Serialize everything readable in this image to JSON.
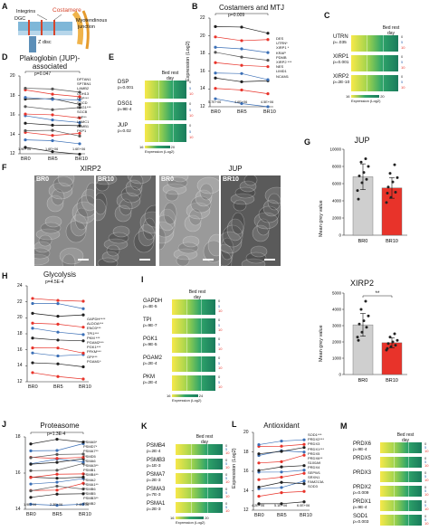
{
  "panels": {
    "A": {
      "letter": "A",
      "labels": [
        "Integrins",
        "DGC",
        "Costamere",
        "Myotendinous",
        "junction",
        "Z disc"
      ],
      "vertical_text": "Tendon"
    },
    "B": {
      "letter": "B",
      "title": "Costamers and MTJ",
      "pvalue": "p=0.009",
      "ylabel": "Expression (Log2)",
      "yticks": [
        "22",
        "20",
        "18",
        "16",
        "14",
        "12"
      ],
      "xticks": [
        "BR0",
        "BR5",
        "BR10"
      ],
      "genes": [
        "DES",
        "UTRN*",
        "XIRP1 *",
        "KRAP",
        "PDMB",
        "XIRP2 ***",
        "NES",
        "LIMD1",
        "NCAM1"
      ],
      "bottom_counts": [
        "5.7E+06",
        "4.6E+06",
        "4.5E+06"
      ]
    },
    "C": {
      "letter": "C",
      "bed_rest_label": "Bed rest day",
      "rows": [
        {
          "gene": "UTRN",
          "p": "p=.035",
          "days": [
            "0",
            "5",
            "10"
          ]
        },
        {
          "gene": "XIRP1",
          "p": "p=0.001",
          "days": [
            "0",
            "5",
            "10"
          ]
        },
        {
          "gene": "XIRP2",
          "p": "p=2E-10",
          "days": [
            "0",
            "5",
            "10"
          ]
        }
      ],
      "scale_min": "16",
      "scale_max": "20",
      "scale_label": "Expression (Log2)"
    },
    "D": {
      "letter": "D",
      "title_line1": "Plakoglobin (JUP)-",
      "title_line2": "associated",
      "pvalue": "p=0.047",
      "yticks": [
        "20",
        "18",
        "16",
        "14",
        "12"
      ],
      "xticks": [
        "BR0",
        "BR5",
        "BR10"
      ],
      "genes": [
        "DPTAN1",
        "SPTBN1",
        "LAMB2",
        "CDH13",
        "DSP***",
        "SGCD",
        "DSG1***",
        "SGCB",
        "JUP**",
        "LAMC1",
        "LAMB1",
        "PKP1"
      ],
      "bottom_counts": [
        "1.9E+06",
        "1.6E+06",
        "1.6E+06"
      ]
    },
    "E": {
      "letter": "E",
      "bed_rest_label": "Bed rest day",
      "rows": [
        {
          "gene": "DSP",
          "p": "p=0.001",
          "days": [
            "0",
            "5",
            "10"
          ]
        },
        {
          "gene": "DSG1",
          "p": "p=9E-4",
          "days": [
            "0",
            "5",
            "10"
          ]
        },
        {
          "gene": "JUP",
          "p": "p=0.02",
          "days": [
            "0",
            "5",
            "10"
          ]
        }
      ],
      "scale_min": "16",
      "scale_max": "20",
      "scale_label": "Expression (Log2)"
    },
    "F": {
      "letter": "F",
      "group1_title": "XIRP2",
      "group2_title": "JUP",
      "images": [
        "BR0",
        "BR10",
        "BR0",
        "BR10"
      ]
    },
    "G": {
      "letter": "G",
      "chart1_title": "JUP",
      "chart2_title": "XIRP2",
      "ylabel": "Mean grey value",
      "chart1_yticks": [
        "10000",
        "8000",
        "6000",
        "4000",
        "2000",
        "0"
      ],
      "chart2_yticks": [
        "5000",
        "4000",
        "3000",
        "2000",
        "1000",
        "0"
      ],
      "sig": "**"
    },
    "H": {
      "letter": "H",
      "title": "Glycolysis",
      "pvalue": "p=4.5E-4",
      "yticks": [
        "24",
        "22",
        "20",
        "18",
        "16",
        "14",
        "12"
      ],
      "xticks": [
        "BR0",
        "BR5",
        "BR10"
      ],
      "genes": [
        "GAPDH****",
        "ALDOA***",
        "ENO3***",
        "TPI1***",
        "PKM ***",
        "PGAM2***",
        "PGK1***",
        "PFKM***",
        "GPI***",
        "PGAM1*"
      ]
    },
    "I": {
      "letter": "I",
      "bed_rest_label": "Bed rest day",
      "rows": [
        {
          "gene": "GAPDH",
          "p": "p=4E-5",
          "days": [
            "0",
            "5",
            "10"
          ]
        },
        {
          "gene": "TPI",
          "p": "p=9E-7",
          "days": [
            "0",
            "5",
            "10"
          ]
        },
        {
          "gene": "PGK1",
          "p": "p=9E-5",
          "days": [
            "0",
            "5",
            "10"
          ]
        },
        {
          "gene": "PGAM2",
          "p": "p=2E-4",
          "days": [
            "0",
            "5",
            "10"
          ]
        },
        {
          "gene": "PKM",
          "p": "p=2E-4",
          "days": [
            "0",
            "5",
            "10"
          ]
        }
      ],
      "scale_min": "16",
      "scale_max": "24",
      "scale_label": "Expression (Log2)"
    },
    "J": {
      "letter": "J",
      "title": "Proteasome",
      "pvalue": "p=1.3E-4",
      "yticks": [
        "18",
        "16",
        "14"
      ],
      "xticks": [
        "BR0",
        "BR5",
        "BR10"
      ],
      "genes": [
        "PSMA5*",
        "PSMD7*",
        "PSMA7**",
        "PSMD5",
        "PSMA6",
        "PSMA3**",
        "PSMB1",
        "PSMB4**",
        "PSMA2",
        "PSMA1**",
        "PSMB6",
        "PSMB5",
        "PSMB3**",
        "PSMB2"
      ],
      "bottom_counts": [
        "1.9E+06",
        "2.3E+06",
        "2.4E+06"
      ]
    },
    "K": {
      "letter": "K",
      "bed_rest_label": "Bed rest day",
      "rows": [
        {
          "gene": "PSMB4",
          "p": "p=2E-4",
          "days": [
            "0",
            "5",
            "10"
          ]
        },
        {
          "gene": "PSMB3",
          "p": "p=1E-3",
          "days": [
            "0",
            "5",
            "10"
          ]
        },
        {
          "gene": "PSMA7",
          "p": "p=2E-3",
          "days": [
            "0",
            "5",
            "10"
          ]
        },
        {
          "gene": "PSMA3",
          "p": "p=7E-3",
          "days": [
            "0",
            "5",
            "10"
          ]
        },
        {
          "gene": "PSMA1",
          "p": "p=2E-3",
          "days": [
            "0",
            "5",
            "10"
          ]
        }
      ],
      "scale_min": "16",
      "scale_max": "20",
      "scale_label": "Expression (Log2)"
    },
    "L": {
      "letter": "L",
      "title": "Antioxidant",
      "ylabel": "Expression (Log2)",
      "yticks": [
        "20",
        "18",
        "16",
        "14",
        "12"
      ],
      "xticks": [
        "BR0",
        "BR5",
        "BR10"
      ],
      "genes": [
        "SOD1***",
        "PRDX2***",
        "PRDX3",
        "PRDX1***",
        "PRDX5",
        "PRDX6**",
        "S100A9",
        "PRDX4",
        "SEPW1",
        "SRXN1",
        "FAM213A",
        "SOD3"
      ],
      "bottom_counts": [
        "4.2E+06",
        "5.1E+06",
        "6.0E+06"
      ]
    },
    "M": {
      "letter": "M",
      "bed_rest_label": "Bed rest day",
      "rows": [
        {
          "gene": "PRDX6",
          "p": "p=9E-4",
          "days": [
            "0",
            "5",
            "10"
          ]
        },
        {
          "gene": "PRDX5",
          "p": "",
          "days": [
            "0",
            "5",
            "10"
          ]
        },
        {
          "gene": "PRDX3",
          "p": "",
          "days": [
            "0",
            "5",
            "10"
          ]
        },
        {
          "gene": "PRDX2",
          "p": "p=0.009",
          "days": [
            "0",
            "5",
            "10"
          ]
        },
        {
          "gene": "PRDX1",
          "p": "p=9E-4",
          "days": [
            "0",
            "5",
            "10"
          ]
        },
        {
          "gene": "SOD1",
          "p": "p=0.003",
          "days": [
            "0",
            "5",
            "10"
          ]
        }
      ]
    }
  },
  "chart_data": [
    {
      "type": "bar",
      "title": "JUP",
      "categories": [
        "BR0",
        "BR10"
      ],
      "values": [
        6800,
        5500
      ],
      "errors": [
        1500,
        1200
      ],
      "ylabel": "Mean grey value",
      "ylim": [
        0,
        10000
      ],
      "points": [
        [
          5200,
          6100,
          6500,
          6900,
          7300,
          8000,
          8500,
          8900,
          4200
        ],
        [
          3800,
          4400,
          5000,
          5600,
          6200,
          6700,
          7200,
          8200,
          4900
        ]
      ],
      "colors": [
        "#cfcfcf",
        "#e8332a"
      ]
    },
    {
      "type": "bar",
      "title": "XIRP2",
      "categories": [
        "BR0",
        "BR10"
      ],
      "values": [
        3050,
        1950
      ],
      "errors": [
        700,
        300
      ],
      "ylabel": "Mean grey value",
      "ylim": [
        0,
        5000
      ],
      "points": [
        [
          2300,
          2600,
          2900,
          3100,
          3300,
          3600,
          4000,
          4500,
          2100
        ],
        [
          1500,
          1700,
          1800,
          1900,
          2000,
          2100,
          2300,
          2500,
          1600
        ]
      ],
      "colors": [
        "#cfcfcf",
        "#e8332a"
      ],
      "significance": "**"
    }
  ]
}
